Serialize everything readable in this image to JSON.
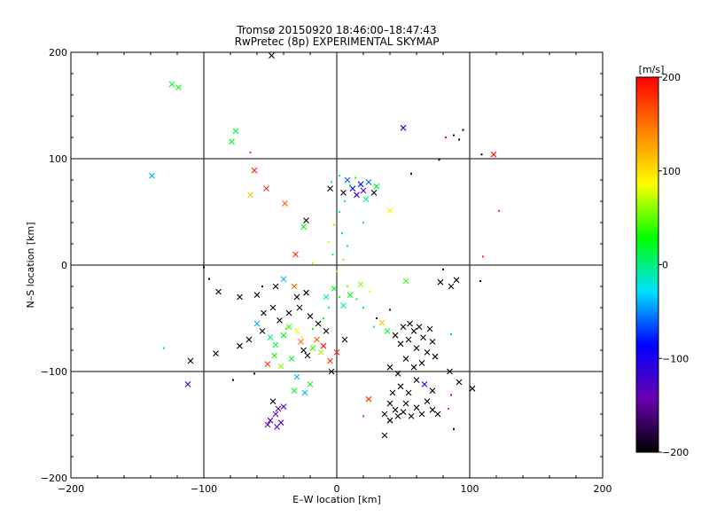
{
  "chart_data": {
    "type": "scatter",
    "title": "Tromsø 20150920 18:46:00–18:47:43",
    "subtitle": "RwPretec (8p) EXPERIMENTAL SKYMAP",
    "xlabel": "E–W location [km]",
    "ylabel": "N–S location [km]",
    "xlim": [
      -200,
      200
    ],
    "ylim": [
      -200,
      200
    ],
    "xticks": [
      -200,
      -100,
      0,
      100,
      200
    ],
    "yticks": [
      -200,
      -100,
      0,
      100,
      200
    ],
    "grid": true,
    "colorbar": {
      "label": "[m/s]",
      "range": [
        -200,
        200
      ],
      "ticks": [
        -200,
        -100,
        0,
        100,
        200
      ],
      "colors": [
        "#000000",
        "#6a00b0",
        "#0000ff",
        "#00e0ff",
        "#00ff00",
        "#ffff00",
        "#ff8000",
        "#ff0000"
      ]
    },
    "markers": [
      "x (larger echoes)",
      "dot (smaller echoes)"
    ],
    "points": [
      {
        "x": -49,
        "y": 197,
        "v": -200,
        "m": "x"
      },
      {
        "x": -124,
        "y": 170,
        "v": 20,
        "m": "x"
      },
      {
        "x": -119,
        "y": 167,
        "v": 30,
        "m": "x"
      },
      {
        "x": -76,
        "y": 126,
        "v": 20,
        "m": "x"
      },
      {
        "x": -79,
        "y": 116,
        "v": 20,
        "m": "x"
      },
      {
        "x": -139,
        "y": 84,
        "v": -40,
        "m": "x"
      },
      {
        "x": 50,
        "y": 129,
        "v": -110,
        "m": "x"
      },
      {
        "x": -62,
        "y": 89,
        "v": 180,
        "m": "x"
      },
      {
        "x": -53,
        "y": 72,
        "v": 180,
        "m": "x"
      },
      {
        "x": -65,
        "y": 66,
        "v": 110,
        "m": "x"
      },
      {
        "x": -39,
        "y": 58,
        "v": 160,
        "m": "x"
      },
      {
        "x": 118,
        "y": 104,
        "v": 190,
        "m": "x"
      },
      {
        "x": 109,
        "y": 104,
        "v": -200,
        "m": "."
      },
      {
        "x": 77,
        "y": 99,
        "v": -200,
        "m": "."
      },
      {
        "x": 88,
        "y": 122,
        "v": -200,
        "m": "."
      },
      {
        "x": 92,
        "y": 118,
        "v": -200,
        "m": "."
      },
      {
        "x": 82,
        "y": 120,
        "v": 200,
        "m": "."
      },
      {
        "x": 95,
        "y": 127,
        "v": -200,
        "m": "."
      },
      {
        "x": -65,
        "y": 106,
        "v": 180,
        "m": "."
      },
      {
        "x": 122,
        "y": 51,
        "v": 180,
        "m": "."
      },
      {
        "x": 110,
        "y": 8,
        "v": 180,
        "m": "."
      },
      {
        "x": -31,
        "y": 10,
        "v": 180,
        "m": "x"
      },
      {
        "x": 40,
        "y": 51,
        "v": 90,
        "m": "x"
      },
      {
        "x": 8,
        "y": 80,
        "v": -60,
        "m": "x"
      },
      {
        "x": 12,
        "y": 72,
        "v": -90,
        "m": "x"
      },
      {
        "x": 15,
        "y": 66,
        "v": -110,
        "m": "x"
      },
      {
        "x": 18,
        "y": 76,
        "v": -80,
        "m": "x"
      },
      {
        "x": 20,
        "y": 70,
        "v": -130,
        "m": "x"
      },
      {
        "x": 24,
        "y": 78,
        "v": -60,
        "m": "x"
      },
      {
        "x": 28,
        "y": 68,
        "v": -200,
        "m": "x"
      },
      {
        "x": 5,
        "y": 68,
        "v": -200,
        "m": "x"
      },
      {
        "x": -5,
        "y": 72,
        "v": -200,
        "m": "x"
      },
      {
        "x": 30,
        "y": 74,
        "v": 20,
        "m": "x"
      },
      {
        "x": 22,
        "y": 62,
        "v": 0,
        "m": "x"
      },
      {
        "x": -23,
        "y": 42,
        "v": -200,
        "m": "x"
      },
      {
        "x": -25,
        "y": 36,
        "v": 20,
        "m": "x"
      },
      {
        "x": 10,
        "y": 75,
        "v": 10,
        "m": "."
      },
      {
        "x": 14,
        "y": 82,
        "v": 40,
        "m": "."
      },
      {
        "x": 2,
        "y": 84,
        "v": 0,
        "m": "."
      },
      {
        "x": -4,
        "y": 78,
        "v": 20,
        "m": "."
      },
      {
        "x": 6,
        "y": 60,
        "v": -20,
        "m": "."
      },
      {
        "x": 2,
        "y": 50,
        "v": 0,
        "m": "."
      },
      {
        "x": -2,
        "y": 38,
        "v": 60,
        "m": "."
      },
      {
        "x": 4,
        "y": 30,
        "v": 20,
        "m": "."
      },
      {
        "x": -6,
        "y": 22,
        "v": 80,
        "m": "."
      },
      {
        "x": 8,
        "y": 18,
        "v": 10,
        "m": "."
      },
      {
        "x": -3,
        "y": 10,
        "v": 0,
        "m": "."
      },
      {
        "x": 5,
        "y": 5,
        "v": 60,
        "m": "."
      },
      {
        "x": 0,
        "y": -6,
        "v": 110,
        "m": "."
      },
      {
        "x": 20,
        "y": 40,
        "v": -30,
        "m": "."
      },
      {
        "x": 56,
        "y": 86,
        "v": -200,
        "m": "."
      },
      {
        "x": -100,
        "y": -2,
        "v": -200,
        "m": "."
      },
      {
        "x": -18,
        "y": 2,
        "v": 110,
        "m": "."
      },
      {
        "x": -46,
        "y": -20,
        "v": -200,
        "m": "x"
      },
      {
        "x": -60,
        "y": -28,
        "v": -200,
        "m": "x"
      },
      {
        "x": -73,
        "y": -30,
        "v": -200,
        "m": "x"
      },
      {
        "x": -89,
        "y": -25,
        "v": -200,
        "m": "x"
      },
      {
        "x": -40,
        "y": -13,
        "v": -40,
        "m": "x"
      },
      {
        "x": -32,
        "y": -20,
        "v": 160,
        "m": "x"
      },
      {
        "x": -48,
        "y": -40,
        "v": -200,
        "m": "x"
      },
      {
        "x": -55,
        "y": -45,
        "v": -200,
        "m": "x"
      },
      {
        "x": -60,
        "y": -55,
        "v": -40,
        "m": "x"
      },
      {
        "x": -56,
        "y": -62,
        "v": -200,
        "m": "x"
      },
      {
        "x": -66,
        "y": -70,
        "v": -200,
        "m": "x"
      },
      {
        "x": -73,
        "y": -76,
        "v": -200,
        "m": "x"
      },
      {
        "x": -91,
        "y": -83,
        "v": -200,
        "m": "x"
      },
      {
        "x": -110,
        "y": -90,
        "v": -200,
        "m": "x"
      },
      {
        "x": -112,
        "y": -112,
        "v": -110,
        "m": "x"
      },
      {
        "x": -52,
        "y": -93,
        "v": 180,
        "m": "x"
      },
      {
        "x": -46,
        "y": -75,
        "v": 20,
        "m": "x"
      },
      {
        "x": -40,
        "y": -66,
        "v": 20,
        "m": "x"
      },
      {
        "x": -36,
        "y": -58,
        "v": 40,
        "m": "x"
      },
      {
        "x": -30,
        "y": -62,
        "v": 80,
        "m": "x"
      },
      {
        "x": -27,
        "y": -72,
        "v": 150,
        "m": "x"
      },
      {
        "x": -25,
        "y": -80,
        "v": -200,
        "m": "x"
      },
      {
        "x": -22,
        "y": -85,
        "v": -200,
        "m": "x"
      },
      {
        "x": -18,
        "y": -78,
        "v": 40,
        "m": "x"
      },
      {
        "x": -15,
        "y": -70,
        "v": 160,
        "m": "x"
      },
      {
        "x": -12,
        "y": -82,
        "v": 60,
        "m": "x"
      },
      {
        "x": -10,
        "y": -76,
        "v": 190,
        "m": "x"
      },
      {
        "x": -5,
        "y": -90,
        "v": 180,
        "m": "x"
      },
      {
        "x": -8,
        "y": -62,
        "v": -200,
        "m": "x"
      },
      {
        "x": -14,
        "y": -55,
        "v": -200,
        "m": "x"
      },
      {
        "x": -20,
        "y": -48,
        "v": -200,
        "m": "x"
      },
      {
        "x": -28,
        "y": -40,
        "v": -200,
        "m": "x"
      },
      {
        "x": -36,
        "y": -45,
        "v": -200,
        "m": "x"
      },
      {
        "x": -30,
        "y": -30,
        "v": -200,
        "m": "x"
      },
      {
        "x": -23,
        "y": -26,
        "v": -200,
        "m": "x"
      },
      {
        "x": -43,
        "y": -52,
        "v": -200,
        "m": "x"
      },
      {
        "x": -50,
        "y": -68,
        "v": 0,
        "m": "x"
      },
      {
        "x": -47,
        "y": -85,
        "v": 30,
        "m": "x"
      },
      {
        "x": -42,
        "y": -95,
        "v": 60,
        "m": "x"
      },
      {
        "x": -34,
        "y": -88,
        "v": 20,
        "m": "x"
      },
      {
        "x": -30,
        "y": -105,
        "v": -40,
        "m": "x"
      },
      {
        "x": -20,
        "y": -112,
        "v": 20,
        "m": "x"
      },
      {
        "x": -24,
        "y": -120,
        "v": -40,
        "m": "x"
      },
      {
        "x": -32,
        "y": -118,
        "v": 20,
        "m": "x"
      },
      {
        "x": 0,
        "y": -82,
        "v": 180,
        "m": "x"
      },
      {
        "x": 6,
        "y": -70,
        "v": -200,
        "m": "x"
      },
      {
        "x": -4,
        "y": -100,
        "v": -200,
        "m": "x"
      },
      {
        "x": -48,
        "y": -128,
        "v": -200,
        "m": "x"
      },
      {
        "x": -44,
        "y": -135,
        "v": -150,
        "m": "x"
      },
      {
        "x": -40,
        "y": -133,
        "v": -120,
        "m": "x"
      },
      {
        "x": -46,
        "y": -140,
        "v": -140,
        "m": "x"
      },
      {
        "x": -50,
        "y": -146,
        "v": -120,
        "m": "x"
      },
      {
        "x": -42,
        "y": -148,
        "v": -110,
        "m": "x"
      },
      {
        "x": -45,
        "y": -152,
        "v": -130,
        "m": "x"
      },
      {
        "x": -52,
        "y": -150,
        "v": -150,
        "m": "x"
      },
      {
        "x": -62,
        "y": -102,
        "v": -200,
        "m": "."
      },
      {
        "x": -78,
        "y": -108,
        "v": -200,
        "m": "."
      },
      {
        "x": -130,
        "y": -78,
        "v": 20,
        "m": "."
      },
      {
        "x": -56,
        "y": -20,
        "v": -200,
        "m": "."
      },
      {
        "x": -96,
        "y": -13,
        "v": -200,
        "m": "."
      },
      {
        "x": -38,
        "y": -60,
        "v": 40,
        "m": "."
      },
      {
        "x": -26,
        "y": -68,
        "v": 80,
        "m": "."
      },
      {
        "x": -18,
        "y": -60,
        "v": 20,
        "m": "."
      },
      {
        "x": -10,
        "y": -50,
        "v": 30,
        "m": "."
      },
      {
        "x": -6,
        "y": -40,
        "v": -20,
        "m": "."
      },
      {
        "x": 2,
        "y": -30,
        "v": 40,
        "m": "."
      },
      {
        "x": 8,
        "y": -20,
        "v": 60,
        "m": "."
      },
      {
        "x": 15,
        "y": -32,
        "v": 20,
        "m": "."
      },
      {
        "x": 20,
        "y": -40,
        "v": 0,
        "m": "."
      },
      {
        "x": 25,
        "y": -25,
        "v": 80,
        "m": "."
      },
      {
        "x": -2,
        "y": -22,
        "v": 20,
        "m": "x"
      },
      {
        "x": 10,
        "y": -28,
        "v": 30,
        "m": "x"
      },
      {
        "x": 18,
        "y": -18,
        "v": 60,
        "m": "x"
      },
      {
        "x": 5,
        "y": -38,
        "v": 0,
        "m": "x"
      },
      {
        "x": -8,
        "y": -30,
        "v": -20,
        "m": "x"
      },
      {
        "x": 30,
        "y": -50,
        "v": -200,
        "m": "."
      },
      {
        "x": 34,
        "y": -54,
        "v": 110,
        "m": "x"
      },
      {
        "x": 38,
        "y": -62,
        "v": 20,
        "m": "x"
      },
      {
        "x": 52,
        "y": -15,
        "v": 40,
        "m": "x"
      },
      {
        "x": 50,
        "y": -58,
        "v": -200,
        "m": "x"
      },
      {
        "x": 55,
        "y": -55,
        "v": -200,
        "m": "x"
      },
      {
        "x": 58,
        "y": -62,
        "v": -200,
        "m": "x"
      },
      {
        "x": 62,
        "y": -58,
        "v": -200,
        "m": "x"
      },
      {
        "x": 65,
        "y": -68,
        "v": -200,
        "m": "x"
      },
      {
        "x": 70,
        "y": -60,
        "v": -200,
        "m": "x"
      },
      {
        "x": 72,
        "y": -72,
        "v": -200,
        "m": "x"
      },
      {
        "x": 68,
        "y": -82,
        "v": -200,
        "m": "x"
      },
      {
        "x": 60,
        "y": -78,
        "v": -200,
        "m": "x"
      },
      {
        "x": 54,
        "y": -70,
        "v": -200,
        "m": "x"
      },
      {
        "x": 48,
        "y": -74,
        "v": -200,
        "m": "x"
      },
      {
        "x": 44,
        "y": -66,
        "v": -200,
        "m": "x"
      },
      {
        "x": 74,
        "y": -86,
        "v": -200,
        "m": "x"
      },
      {
        "x": 64,
        "y": -92,
        "v": -200,
        "m": "x"
      },
      {
        "x": 58,
        "y": -96,
        "v": -200,
        "m": "x"
      },
      {
        "x": 52,
        "y": -88,
        "v": -200,
        "m": "x"
      },
      {
        "x": 40,
        "y": -96,
        "v": -200,
        "m": "x"
      },
      {
        "x": 46,
        "y": -102,
        "v": -200,
        "m": "x"
      },
      {
        "x": 60,
        "y": -108,
        "v": -200,
        "m": "x"
      },
      {
        "x": 66,
        "y": -112,
        "v": -100,
        "m": "x"
      },
      {
        "x": 72,
        "y": -118,
        "v": -200,
        "m": "x"
      },
      {
        "x": 54,
        "y": -120,
        "v": -200,
        "m": "x"
      },
      {
        "x": 48,
        "y": -114,
        "v": -200,
        "m": "x"
      },
      {
        "x": 42,
        "y": -120,
        "v": -200,
        "m": "x"
      },
      {
        "x": 40,
        "y": -130,
        "v": -200,
        "m": "x"
      },
      {
        "x": 44,
        "y": -136,
        "v": -200,
        "m": "x"
      },
      {
        "x": 46,
        "y": -142,
        "v": -200,
        "m": "x"
      },
      {
        "x": 50,
        "y": -138,
        "v": -200,
        "m": "x"
      },
      {
        "x": 52,
        "y": -130,
        "v": -200,
        "m": "x"
      },
      {
        "x": 56,
        "y": -142,
        "v": -200,
        "m": "x"
      },
      {
        "x": 60,
        "y": -134,
        "v": -200,
        "m": "x"
      },
      {
        "x": 64,
        "y": -140,
        "v": -200,
        "m": "x"
      },
      {
        "x": 68,
        "y": -128,
        "v": -200,
        "m": "x"
      },
      {
        "x": 72,
        "y": -136,
        "v": -200,
        "m": "x"
      },
      {
        "x": 76,
        "y": -140,
        "v": -200,
        "m": "x"
      },
      {
        "x": 36,
        "y": -140,
        "v": -200,
        "m": "x"
      },
      {
        "x": 40,
        "y": -146,
        "v": -200,
        "m": "x"
      },
      {
        "x": 36,
        "y": -160,
        "v": -200,
        "m": "x"
      },
      {
        "x": 24,
        "y": -126,
        "v": 180,
        "m": "x"
      },
      {
        "x": 92,
        "y": -110,
        "v": -200,
        "m": "x"
      },
      {
        "x": 102,
        "y": -116,
        "v": -200,
        "m": "x"
      },
      {
        "x": 85,
        "y": -100,
        "v": -200,
        "m": "x"
      },
      {
        "x": 84,
        "y": -135,
        "v": 180,
        "m": "."
      },
      {
        "x": 88,
        "y": -154,
        "v": -200,
        "m": "."
      },
      {
        "x": 20,
        "y": -142,
        "v": 180,
        "m": "."
      },
      {
        "x": 86,
        "y": -122,
        "v": 200,
        "m": "."
      },
      {
        "x": 86,
        "y": -20,
        "v": -200,
        "m": "x"
      },
      {
        "x": 90,
        "y": -14,
        "v": -200,
        "m": "x"
      },
      {
        "x": 78,
        "y": -16,
        "v": -200,
        "m": "x"
      },
      {
        "x": 108,
        "y": -15,
        "v": -200,
        "m": "."
      },
      {
        "x": 80,
        "y": -4,
        "v": -200,
        "m": "."
      },
      {
        "x": 86,
        "y": -65,
        "v": -40,
        "m": "."
      },
      {
        "x": 40,
        "y": -42,
        "v": -200,
        "m": "."
      },
      {
        "x": 28,
        "y": -58,
        "v": 20,
        "m": "."
      }
    ]
  }
}
